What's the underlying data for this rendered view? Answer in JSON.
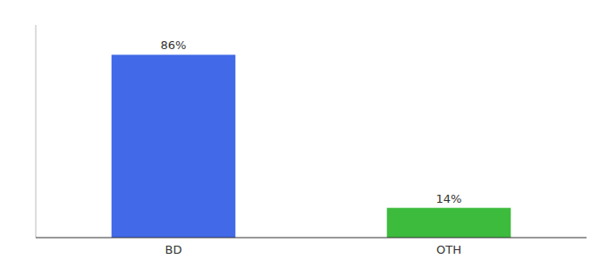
{
  "chart_data": {
    "type": "bar",
    "categories": [
      "BD",
      "OTH"
    ],
    "values": [
      86,
      14
    ],
    "value_labels": [
      "86%",
      "14%"
    ],
    "colors": [
      "#4169e8",
      "#3dbb3d"
    ],
    "ylim": [
      0,
      100
    ],
    "grid": false,
    "data_labels": true,
    "tick_labels": "x"
  }
}
